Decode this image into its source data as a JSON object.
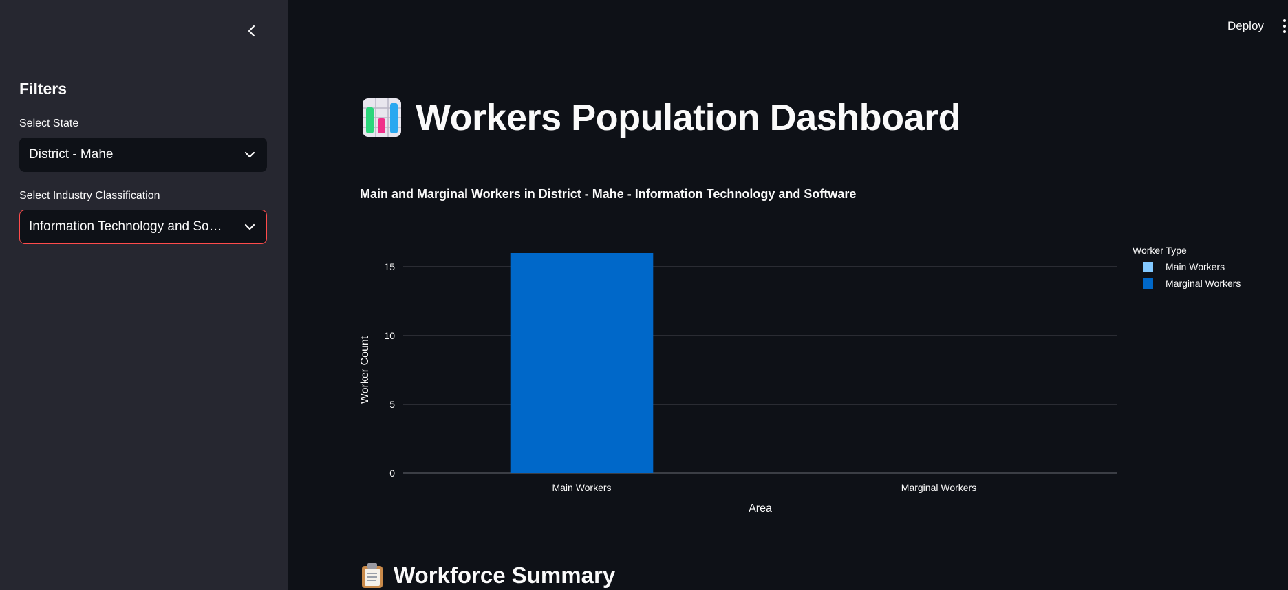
{
  "header": {
    "deploy_label": "Deploy",
    "menu_icon": "kebab-menu-icon"
  },
  "sidebar": {
    "collapse_icon": "chevron-left-icon",
    "title": "Filters",
    "state_label": "Select State",
    "state_value": "District - Mahe",
    "industry_label": "Select Industry Classification",
    "industry_value": "Information Technology and So…"
  },
  "main": {
    "title_icon": "bar-chart-icon",
    "title": "Workers Population Dashboard",
    "chart_title": "Main and Marginal Workers in District - Mahe - Information Technology and Software",
    "section_icon": "clipboard-icon",
    "section_title": "Workforce Summary"
  },
  "colors": {
    "main_workers": "#83c9ff",
    "marginal_workers": "#0068c9",
    "accent": "#ff4b4b"
  },
  "chart_data": {
    "type": "bar",
    "categories": [
      "Main Workers",
      "Marginal Workers"
    ],
    "series": [
      {
        "name": "Main Workers",
        "color": "#83c9ff",
        "values": [
          0,
          0
        ]
      },
      {
        "name": "Marginal Workers",
        "color": "#0068c9",
        "values": [
          16,
          0
        ]
      }
    ],
    "xlabel": "Area",
    "ylabel": "Worker Count",
    "ylim": [
      0,
      16
    ],
    "yticks": [
      0,
      5,
      10,
      15
    ],
    "legend_title": "Worker Type",
    "legend_position": "right",
    "grid": true
  }
}
